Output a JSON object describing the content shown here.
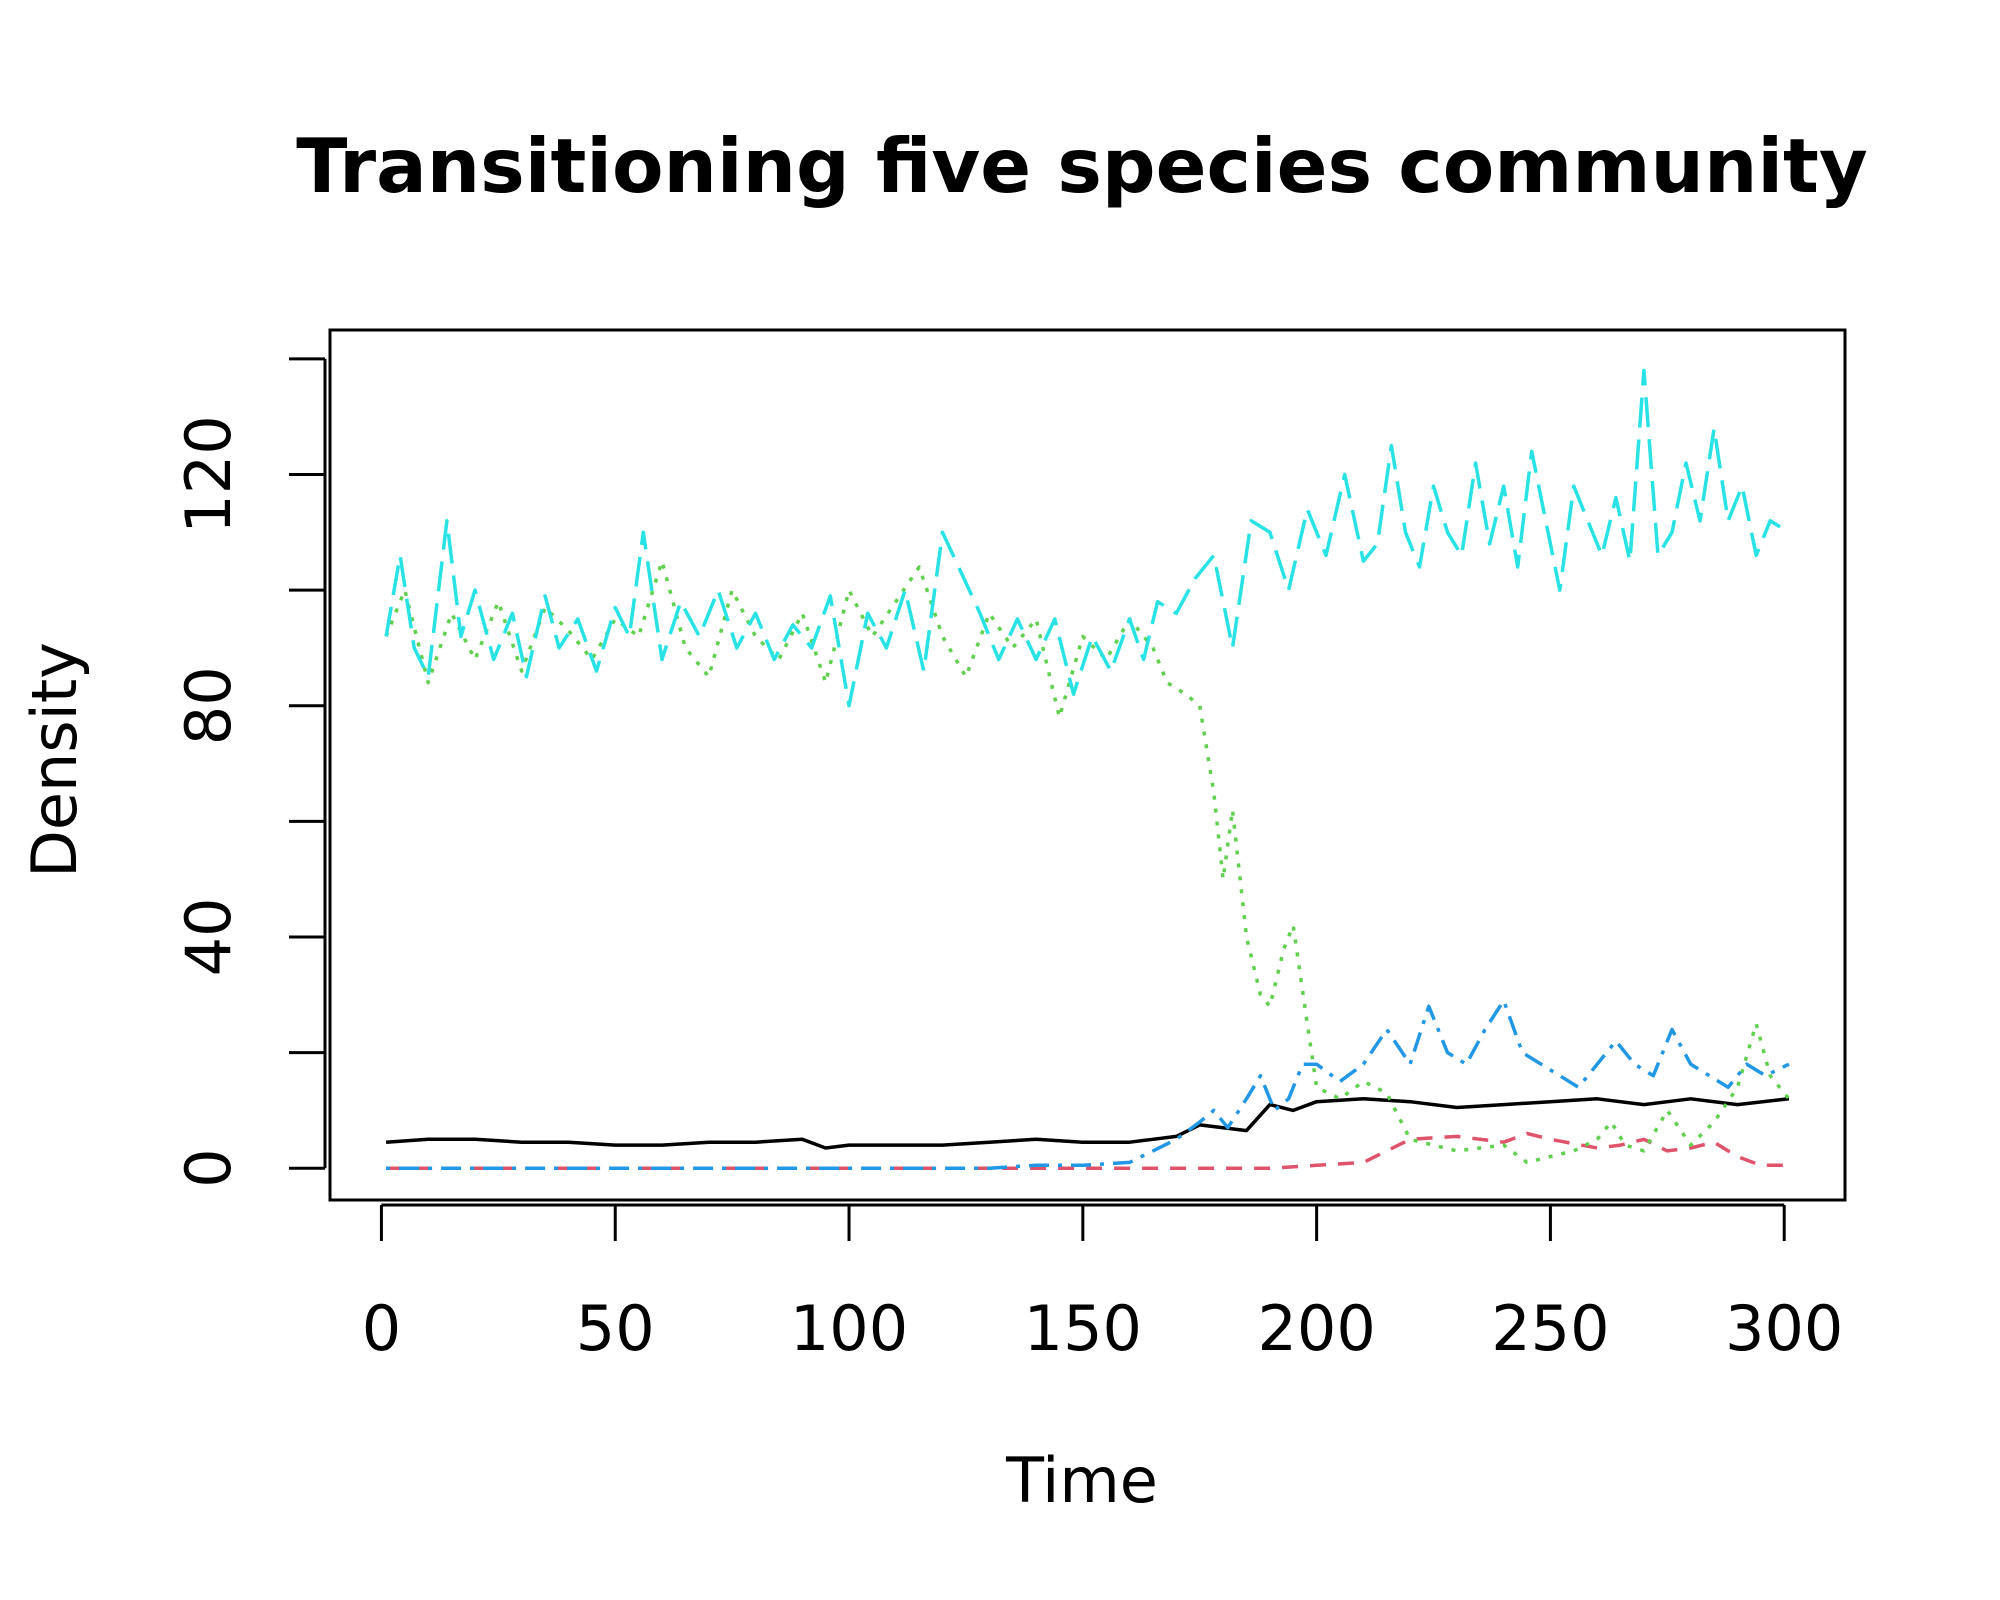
{
  "chart_data": {
    "type": "line",
    "title": "Transitioning five species community",
    "xlabel": "Time",
    "ylabel": "Density",
    "xlim": [
      -11,
      313
    ],
    "ylim": [
      -5.5,
      145
    ],
    "xticks": [
      0,
      50,
      100,
      150,
      200,
      250,
      300
    ],
    "yticks": [
      0,
      20,
      40,
      60,
      80,
      100,
      120,
      140
    ],
    "yticklabels_shown": [
      0,
      40,
      80,
      120
    ],
    "grid": false,
    "legend": "none",
    "series": [
      {
        "color": "#000000",
        "dash": "solid",
        "x": [
          1,
          10,
          20,
          30,
          40,
          50,
          60,
          70,
          80,
          90,
          95,
          100,
          110,
          120,
          130,
          140,
          150,
          160,
          165,
          170,
          175,
          180,
          185,
          190,
          195,
          200,
          210,
          220,
          230,
          240,
          250,
          260,
          270,
          280,
          290,
          301
        ],
        "y": [
          4.5,
          5,
          5,
          4.5,
          4.5,
          4,
          4,
          4.5,
          4.5,
          5,
          3.5,
          4,
          4,
          4,
          4.5,
          5,
          4.5,
          4.5,
          5,
          5.5,
          7.5,
          7,
          6.5,
          11,
          10,
          11.5,
          12,
          11.5,
          10.5,
          11,
          11.5,
          12,
          11,
          12,
          11,
          12
        ]
      },
      {
        "color": "#DF536B",
        "dash": "dashed",
        "x": [
          1,
          50,
          100,
          150,
          190,
          200,
          210,
          215,
          220,
          230,
          240,
          245,
          250,
          260,
          265,
          270,
          275,
          280,
          285,
          290,
          295,
          301
        ],
        "y": [
          0,
          0,
          0,
          0,
          0,
          0.5,
          1,
          3,
          5,
          5.5,
          4.5,
          6,
          5,
          3.5,
          4,
          5,
          3,
          3.5,
          4.5,
          2,
          0.5,
          0.5
        ]
      },
      {
        "color": "#61D04F",
        "dash": "dotted",
        "x": [
          1,
          5,
          10,
          15,
          20,
          25,
          30,
          35,
          40,
          45,
          50,
          55,
          60,
          65,
          70,
          75,
          80,
          85,
          90,
          95,
          100,
          105,
          110,
          115,
          120,
          125,
          130,
          135,
          140,
          145,
          150,
          155,
          160,
          165,
          168,
          172,
          175,
          178,
          180,
          182,
          185,
          188,
          190,
          193,
          195,
          198,
          200,
          205,
          210,
          215,
          220,
          230,
          240,
          245,
          250,
          255,
          260,
          263,
          266,
          270,
          275,
          280,
          285,
          290,
          294,
          297,
          301
        ],
        "y": [
          92,
          100,
          84,
          96,
          88,
          98,
          86,
          97,
          93,
          88,
          95,
          92,
          105,
          90,
          85,
          100,
          92,
          88,
          96,
          84,
          100,
          92,
          98,
          104,
          92,
          85,
          96,
          90,
          95,
          78,
          92,
          88,
          95,
          90,
          84,
          82,
          80,
          65,
          50,
          62,
          40,
          30,
          28,
          38,
          42,
          25,
          14,
          12,
          15,
          13,
          5,
          3,
          4,
          1,
          2,
          3,
          5,
          8,
          4,
          3,
          10,
          4,
          8,
          14,
          25,
          16,
          12
        ]
      },
      {
        "color": "#28E2E5",
        "dash": "longdash",
        "x": [
          1,
          4,
          7,
          10,
          14,
          17,
          20,
          24,
          28,
          31,
          35,
          38,
          42,
          46,
          50,
          53,
          56,
          60,
          64,
          68,
          72,
          76,
          80,
          84,
          88,
          92,
          96,
          100,
          104,
          108,
          112,
          116,
          120,
          124,
          128,
          132,
          136,
          140,
          144,
          148,
          152,
          156,
          160,
          163,
          166,
          170,
          174,
          178,
          182,
          186,
          190,
          194,
          198,
          202,
          206,
          210,
          213,
          216,
          219,
          222,
          225,
          228,
          231,
          234,
          237,
          240,
          243,
          246,
          249,
          252,
          255,
          258,
          261,
          264,
          267,
          270,
          273,
          276,
          279,
          282,
          285,
          288,
          291,
          294,
          297,
          301
        ],
        "y": [
          92,
          106,
          90,
          85,
          112,
          92,
          100,
          88,
          96,
          85,
          99,
          90,
          95,
          86,
          97,
          92,
          110,
          88,
          98,
          92,
          100,
          90,
          96,
          88,
          94,
          90,
          99,
          80,
          96,
          90,
          100,
          86,
          110,
          103,
          96,
          88,
          95,
          88,
          95,
          82,
          92,
          86,
          95,
          88,
          98,
          96,
          102,
          106,
          90,
          112,
          110,
          100,
          114,
          106,
          120,
          105,
          108,
          125,
          110,
          104,
          118,
          110,
          106,
          122,
          108,
          118,
          104,
          124,
          112,
          100,
          118,
          112,
          106,
          116,
          105,
          138,
          106,
          110,
          122,
          112,
          128,
          112,
          118,
          106,
          112,
          110
        ]
      },
      {
        "color": "#2297E6",
        "dash": "dotdash",
        "x": [
          1,
          50,
          100,
          130,
          140,
          150,
          160,
          165,
          170,
          175,
          178,
          181,
          185,
          188,
          191,
          194,
          197,
          200,
          205,
          210,
          215,
          220,
          224,
          228,
          232,
          236,
          240,
          244,
          248,
          252,
          256,
          260,
          264,
          268,
          272,
          276,
          280,
          284,
          288,
          292,
          296,
          301
        ],
        "y": [
          0,
          0,
          0,
          0,
          0.5,
          0.5,
          1,
          3,
          5,
          8,
          10,
          7,
          12,
          16,
          10,
          12,
          18,
          18,
          15,
          18,
          24,
          18,
          28,
          20,
          18,
          24,
          29,
          20,
          18,
          16,
          14,
          18,
          22,
          18,
          16,
          24,
          18,
          16,
          14,
          18,
          16,
          18
        ]
      }
    ]
  }
}
